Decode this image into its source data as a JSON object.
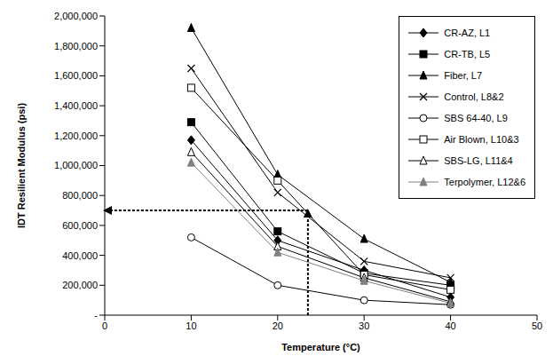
{
  "chart_data": {
    "type": "line",
    "x_label": "Temperature (°C)",
    "y_label": "IDT Resilient Modulus (psi)",
    "x": [
      10,
      20,
      30,
      40
    ],
    "series": [
      {
        "name": "CR-AZ, L1",
        "color": "#000000",
        "marker": "diamond",
        "values": [
          1170000,
          500000,
          300000,
          120000
        ]
      },
      {
        "name": "CR-TB, L5",
        "color": "#000000",
        "marker": "square",
        "values": [
          1290000,
          560000,
          280000,
          200000
        ]
      },
      {
        "name": "Fiber, L7",
        "color": "#000000",
        "marker": "triangle",
        "values": [
          1920000,
          940000,
          510000,
          220000
        ]
      },
      {
        "name": "Control, L8&2",
        "color": "#000000",
        "marker": "cross",
        "values": [
          1650000,
          820000,
          360000,
          250000
        ]
      },
      {
        "name": "SBS 64-40, L9",
        "color": "#000000",
        "marker": "circle_open",
        "values": [
          520000,
          200000,
          100000,
          70000
        ]
      },
      {
        "name": "Air Blown, L10&3",
        "color": "#000000",
        "marker": "square_open",
        "values": [
          1520000,
          900000,
          270000,
          170000
        ]
      },
      {
        "name": "SBS-LG, L11&4",
        "color": "#000000",
        "marker": "triangle_open",
        "values": [
          1090000,
          460000,
          250000,
          90000
        ]
      },
      {
        "name": "Terpolymer, L12&6",
        "color": "#808080",
        "marker": "triangle",
        "values": [
          1020000,
          420000,
          230000,
          80000
        ]
      }
    ],
    "xlim": [
      0,
      50
    ],
    "xticks": [
      0,
      10,
      20,
      30,
      40,
      50
    ],
    "ylim": [
      0,
      2000000
    ],
    "yticks": [
      {
        "value": 0,
        "label": "-"
      },
      {
        "value": 200000,
        "label": "200,000"
      },
      {
        "value": 400000,
        "label": "400,000"
      },
      {
        "value": 600000,
        "label": "600,000"
      },
      {
        "value": 800000,
        "label": "800,000"
      },
      {
        "value": 1000000,
        "label": "1,000,000"
      },
      {
        "value": 1200000,
        "label": "1,200,000"
      },
      {
        "value": 1400000,
        "label": "1,400,000"
      },
      {
        "value": 1600000,
        "label": "1,600,000"
      },
      {
        "value": 1800000,
        "label": "1,800,000"
      },
      {
        "value": 2000000,
        "label": "2,000,000"
      }
    ],
    "reference_point": {
      "x": 23.5,
      "y": 700000
    },
    "legend": "upper right",
    "grid": false
  }
}
